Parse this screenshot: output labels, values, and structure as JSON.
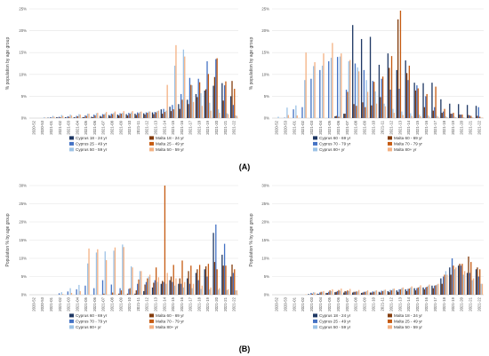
{
  "palette": {
    "dark_blue": "#1f3864",
    "mid_blue": "#4472c4",
    "light_blue": "#9dc3e6",
    "dark_brown": "#843c0c",
    "mid_orange": "#c55a11",
    "light_orange": "#f4b183"
  },
  "panel_labels": [
    "(A)",
    "(B)"
  ],
  "chart_data": [
    {
      "id": "A-left",
      "type": "bar",
      "ylabel": "% population by age group",
      "ylim": [
        0,
        25
      ],
      "yticks": [
        "0%",
        "5%",
        "10%",
        "15%",
        "20%",
        "25%"
      ],
      "grid": true,
      "legend_position": "bottom",
      "categories": [
        "2020-52",
        "2020-53",
        "2021-01",
        "2021-02",
        "2021-03",
        "2021-04",
        "2021-05",
        "2021-06",
        "2021-07",
        "2021-08",
        "2021-09",
        "2021-10",
        "2021-11",
        "2021-12",
        "2021-13",
        "2021-14",
        "2021-15",
        "2021-16",
        "2021-17",
        "2021-18",
        "2021-19",
        "2021-20",
        "2021-21",
        "2021-22"
      ],
      "series": [
        {
          "name": "Cyprus 18 - 24 yr",
          "color": "#1f3864",
          "values": [
            0,
            0,
            0.1,
            0.2,
            0.2,
            0.2,
            0.2,
            0.3,
            0.5,
            0.7,
            0.8,
            0.9,
            1.0,
            1.1,
            1.3,
            2.0,
            2.6,
            3.2,
            4.2,
            5.5,
            6.3,
            7.4,
            8.0,
            5.0
          ]
        },
        {
          "name": "Malta 18 - 24 yr",
          "color": "#843c0c",
          "values": [
            0,
            0,
            0,
            0.1,
            0.1,
            0.1,
            0.2,
            0.2,
            0.3,
            0.5,
            0.6,
            0.6,
            0.7,
            0.8,
            0.9,
            1.0,
            1.6,
            2.1,
            3.2,
            4.8,
            6.6,
            9.4,
            4.0,
            8.5
          ]
        },
        {
          "name": "Cyprus 25 - 49 yr",
          "color": "#4472c4",
          "values": [
            0,
            0,
            0.2,
            0.3,
            0.4,
            0.5,
            0.6,
            0.8,
            0.9,
            1.0,
            1.1,
            1.2,
            1.3,
            1.3,
            1.4,
            2.1,
            3.0,
            5.5,
            9.2,
            9.0,
            13.0,
            13.5,
            7.5,
            3.0
          ]
        },
        {
          "name": "Malta 25 - 49 yr",
          "color": "#c55a11",
          "values": [
            0,
            0,
            0.1,
            0.2,
            0.3,
            0.4,
            0.5,
            0.6,
            0.8,
            0.9,
            1.0,
            1.0,
            1.1,
            1.2,
            1.3,
            1.4,
            2.0,
            4.2,
            7.6,
            8.2,
            10.1,
            13.7,
            8.4,
            6.7
          ]
        },
        {
          "name": "Cyprus 50 - 59 yr",
          "color": "#9dc3e6",
          "values": [
            0,
            0.2,
            0.5,
            0.7,
            0.8,
            0.9,
            1.0,
            1.1,
            1.1,
            1.2,
            1.2,
            1.3,
            1.4,
            1.5,
            1.6,
            1.7,
            12.0,
            15.7,
            7.5,
            5.7,
            3.5,
            2.0,
            1.1,
            0.6
          ]
        },
        {
          "name": "Malta 50 - 59 yr",
          "color": "#f4b183",
          "values": [
            0,
            0.1,
            0.3,
            0.5,
            0.6,
            0.8,
            1.0,
            1.2,
            1.4,
            1.5,
            1.6,
            1.6,
            1.5,
            1.5,
            1.7,
            7.6,
            16.7,
            14.1,
            3.7,
            2.8,
            1.7,
            1.2,
            0.9,
            0.5
          ]
        }
      ]
    },
    {
      "id": "A-right",
      "type": "bar",
      "ylabel": "% population by age group",
      "ylim": [
        0,
        25
      ],
      "yticks": [
        "0%",
        "5%",
        "10%",
        "15%",
        "20%",
        "25%"
      ],
      "grid": true,
      "legend_position": "bottom",
      "categories": [
        "2020-52",
        "2020-53",
        "2021-01",
        "2021-02",
        "2021-03",
        "2021-04",
        "2021-05",
        "2021-06",
        "2021-07",
        "2021-08",
        "2021-09",
        "2021-10",
        "2021-11",
        "2021-12",
        "2021-13",
        "2021-14",
        "2021-15",
        "2021-16",
        "2021-17",
        "2021-18",
        "2021-19",
        "2021-20",
        "2021-21",
        "2021-22"
      ],
      "series": [
        {
          "name": "Cyprus 60 - 69 yr",
          "color": "#1f3864",
          "values": [
            0,
            0,
            0,
            0,
            0,
            0,
            0,
            0.4,
            1.0,
            21.3,
            18.1,
            18.6,
            12.2,
            14.8,
            11.0,
            13.2,
            8.1,
            8.0,
            8.1,
            4.3,
            3.3,
            3.2,
            3.0,
            2.8
          ]
        },
        {
          "name": "Malta 60 - 69 yr",
          "color": "#843c0c",
          "values": [
            0,
            0,
            0,
            0,
            0,
            0,
            0,
            0.5,
            1.0,
            3.2,
            3.6,
            2.9,
            4.8,
            11.5,
            22.6,
            10.3,
            6.3,
            2.5,
            1.7,
            1.2,
            1.0,
            0.8,
            0.7,
            0.5
          ]
        },
        {
          "name": "Cyprus 70 - 79 yr",
          "color": "#4472c4",
          "values": [
            0,
            0.1,
            2.0,
            2.5,
            9.0,
            11.0,
            13.0,
            14.0,
            6.5,
            12.5,
            11.0,
            8.5,
            9.0,
            6.5,
            6.7,
            8.7,
            7.5,
            5.0,
            2.5,
            1.5,
            1.0,
            0.8,
            0.6,
            2.5
          ]
        },
        {
          "name": "Malta 70 - 79 yr",
          "color": "#c55a11",
          "values": [
            0,
            0,
            0,
            0,
            0,
            0,
            0,
            0.3,
            6.0,
            2.8,
            2.5,
            8.3,
            9.5,
            14.2,
            24.6,
            12.0,
            6.8,
            5.5,
            7.2,
            2.1,
            1.2,
            0.8,
            0.5,
            0.3
          ]
        },
        {
          "name": "Cyprus 80+ yr",
          "color": "#9dc3e6",
          "values": [
            0.3,
            2.4,
            2.9,
            8.7,
            11.9,
            12.0,
            13.8,
            14.1,
            13.0,
            11.6,
            8.7,
            6.1,
            3.3,
            2.1,
            1.5,
            1.1,
            0.8,
            0.6,
            0.5,
            0.4,
            0.3,
            0.2,
            0.2,
            0.1
          ]
        },
        {
          "name": "Malta 80+ yr",
          "color": "#f4b183",
          "values": [
            0,
            0.7,
            0.6,
            15.0,
            12.8,
            14.8,
            17.2,
            14.8,
            13.3,
            10.7,
            6.0,
            3.3,
            2.7,
            1.2,
            0.7,
            0.5,
            0.4,
            0.3,
            0.3,
            0.2,
            0.2,
            0.1,
            0.1,
            0.1
          ]
        }
      ]
    },
    {
      "id": "B-left",
      "type": "bar",
      "ylabel": "Population % by age group",
      "ylim": [
        0,
        30
      ],
      "yticks": [
        "0%",
        "5%",
        "10%",
        "15%",
        "20%",
        "25%",
        "30%"
      ],
      "grid": true,
      "legend_position": "bottom",
      "categories": [
        "2020-52",
        "2020-53",
        "2021-01",
        "2021-02",
        "2021-03",
        "2021-04",
        "2021-05",
        "2021-06",
        "2021-07",
        "2021-08",
        "2021-09",
        "2021-10",
        "2021-11",
        "2021-12",
        "2021-13",
        "2021-14",
        "2021-15",
        "2021-16",
        "2021-17",
        "2021-18",
        "2021-19",
        "2021-20",
        "2021-21",
        "2021-22"
      ],
      "series": [
        {
          "name": "Cyprus 60 - 69 yr",
          "color": "#1f3864",
          "values": [
            0,
            0,
            0,
            0,
            0,
            0,
            0,
            0,
            0,
            0,
            0,
            0,
            0.3,
            1.0,
            2.0,
            3.0,
            4.0,
            3.0,
            4.5,
            6.0,
            7.0,
            17.0,
            11.0,
            5.0
          ]
        },
        {
          "name": "Malta 60 - 69 yr",
          "color": "#843c0c",
          "values": [
            0,
            0,
            0,
            0,
            0,
            0,
            0,
            0,
            0,
            0,
            0.3,
            0.3,
            1.2,
            2.8,
            3.3,
            3.8,
            5.0,
            4.5,
            6.5,
            7.0,
            7.8,
            9.0,
            8.0,
            8.3
          ]
        },
        {
          "name": "Cyprus 70 - 79 yr",
          "color": "#4472c4",
          "values": [
            0,
            0,
            0,
            0.4,
            0.9,
            1.5,
            2.5,
            1.8,
            4.0,
            2.8,
            1.8,
            1.6,
            3.0,
            3.5,
            4.0,
            3.5,
            3.5,
            3.0,
            3.0,
            4.0,
            5.0,
            19.3,
            14.0,
            6.0
          ]
        },
        {
          "name": "Malta 70 - 79 yr",
          "color": "#c55a11",
          "values": [
            0,
            0,
            0,
            0,
            0,
            0,
            0,
            0,
            0.3,
            0.6,
            1.2,
            1.8,
            4.2,
            4.5,
            7.5,
            30.0,
            8.2,
            9.4,
            8.0,
            8.2,
            8.5,
            7.0,
            8.0,
            7.0
          ]
        },
        {
          "name": "Cyprus 80+ yr",
          "color": "#9dc3e6",
          "values": [
            0,
            0,
            0,
            0.7,
            1.8,
            2.7,
            8.6,
            11.6,
            11.9,
            12.1,
            13.8,
            7.8,
            6.5,
            5.0,
            3.5,
            3.0,
            2.5,
            2.0,
            1.8,
            1.6,
            1.5,
            1.4,
            1.3,
            1.2
          ]
        },
        {
          "name": "Malta 80+ yr",
          "color": "#f4b183",
          "values": [
            0,
            0,
            0,
            0.2,
            0.5,
            1.0,
            12.7,
            12.5,
            9.5,
            13.0,
            13.1,
            7.5,
            6.5,
            5.5,
            4.8,
            6.0,
            4.5,
            3.5,
            3.0,
            2.5,
            2.0,
            1.8,
            1.5,
            1.2
          ]
        }
      ]
    },
    {
      "id": "B-right",
      "type": "bar",
      "ylabel": "Population % by age group",
      "ylim": [
        0,
        30
      ],
      "yticks": [
        "0%",
        "5%",
        "10%",
        "15%",
        "20%",
        "25%",
        "30%"
      ],
      "grid": true,
      "legend_position": "bottom",
      "categories": [
        "2020-52",
        "2020-53",
        "2021-01",
        "2021-02",
        "2021-03",
        "2021-04",
        "2021-05",
        "2021-06",
        "2021-07",
        "2021-08",
        "2021-09",
        "2021-10",
        "2021-11",
        "2021-12",
        "2021-13",
        "2021-14",
        "2021-15",
        "2021-16",
        "2021-17",
        "2021-18",
        "2021-19",
        "2021-20",
        "2021-21",
        "2021-22"
      ],
      "series": [
        {
          "name": "Cyprus 18 - 24 yr",
          "color": "#1f3864",
          "values": [
            0,
            0,
            0,
            0,
            0.2,
            0.3,
            0.5,
            0.7,
            0.6,
            0.6,
            0.5,
            0.6,
            0.8,
            1.0,
            1.2,
            1.5,
            1.8,
            2.0,
            2.5,
            4.5,
            7.5,
            8.0,
            6.0,
            7.0
          ]
        },
        {
          "name": "Malta 18 - 24 yr",
          "color": "#843c0c",
          "values": [
            0,
            0,
            0,
            0,
            0,
            0.2,
            0.5,
            0.8,
            1.0,
            0.8,
            0.6,
            0.6,
            0.6,
            0.7,
            0.8,
            1.0,
            1.2,
            1.5,
            1.8,
            3.0,
            5.5,
            8.5,
            10.5,
            7.5
          ]
        },
        {
          "name": "Cyprus 25 - 49 yr",
          "color": "#4472c4",
          "values": [
            0,
            0,
            0,
            0,
            0.5,
            0.6,
            0.8,
            1.0,
            0.9,
            0.8,
            0.8,
            0.9,
            1.1,
            1.3,
            1.5,
            1.6,
            1.8,
            2.0,
            2.5,
            5.0,
            10.0,
            8.0,
            6.0,
            5.0
          ]
        },
        {
          "name": "Malta 25 - 49 yr",
          "color": "#c55a11",
          "values": [
            0,
            0,
            0,
            0,
            0.3,
            0.8,
            1.2,
            1.3,
            1.2,
            0.9,
            0.8,
            0.8,
            1.0,
            1.2,
            1.5,
            1.7,
            2.0,
            2.2,
            2.6,
            5.5,
            8.0,
            8.5,
            9.0,
            7.0
          ]
        },
        {
          "name": "Cyprus 50 - 59 yr",
          "color": "#9dc3e6",
          "values": [
            0,
            0,
            0,
            0,
            0.7,
            0.8,
            1.0,
            1.1,
            1.0,
            0.9,
            1.0,
            1.1,
            1.3,
            1.6,
            1.8,
            2.0,
            2.2,
            2.5,
            2.8,
            6.5,
            7.0,
            5.5,
            4.0,
            3.0
          ]
        },
        {
          "name": "Malta 50 - 59 yr",
          "color": "#f4b183",
          "values": [
            0,
            0,
            0,
            0.1,
            0.6,
            1.0,
            1.5,
            1.7,
            1.6,
            1.3,
            1.2,
            1.2,
            1.4,
            1.7,
            2.0,
            2.3,
            2.6,
            2.8,
            3.0,
            5.5,
            7.5,
            6.5,
            4.5,
            3.0
          ]
        }
      ]
    }
  ]
}
